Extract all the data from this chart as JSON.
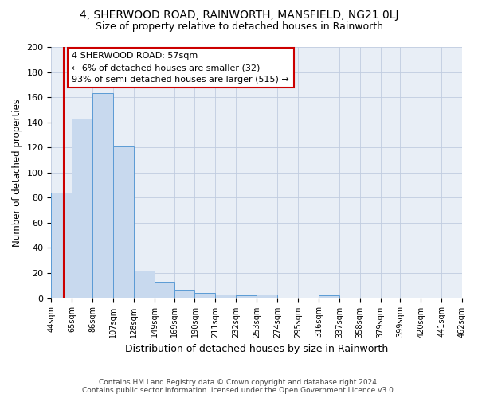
{
  "title": "4, SHERWOOD ROAD, RAINWORTH, MANSFIELD, NG21 0LJ",
  "subtitle": "Size of property relative to detached houses in Rainworth",
  "xlabel": "Distribution of detached houses by size in Rainworth",
  "ylabel": "Number of detached properties",
  "bin_labels": [
    "44sqm",
    "65sqm",
    "86sqm",
    "107sqm",
    "128sqm",
    "149sqm",
    "169sqm",
    "190sqm",
    "211sqm",
    "232sqm",
    "253sqm",
    "274sqm",
    "295sqm",
    "316sqm",
    "337sqm",
    "358sqm",
    "379sqm",
    "399sqm",
    "420sqm",
    "441sqm",
    "462sqm"
  ],
  "bin_edges": [
    44,
    65,
    86,
    107,
    128,
    149,
    169,
    190,
    211,
    232,
    253,
    274,
    295,
    316,
    337,
    358,
    379,
    399,
    420,
    441,
    462
  ],
  "bar_heights": [
    84,
    143,
    163,
    121,
    22,
    13,
    7,
    4,
    3,
    2,
    3,
    0,
    0,
    2,
    0,
    0,
    0,
    0,
    0,
    0
  ],
  "bar_color": "#c8d9ee",
  "bar_edge_color": "#5b9bd5",
  "property_size": 57,
  "property_line_color": "#cc0000",
  "annotation_text": "4 SHERWOOD ROAD: 57sqm\n← 6% of detached houses are smaller (32)\n93% of semi-detached houses are larger (515) →",
  "annotation_box_color": "#ffffff",
  "annotation_box_edge": "#cc0000",
  "ylim": [
    0,
    200
  ],
  "yticks": [
    0,
    20,
    40,
    60,
    80,
    100,
    120,
    140,
    160,
    180,
    200
  ],
  "bg_color": "#e8eef6",
  "footer_line1": "Contains HM Land Registry data © Crown copyright and database right 2024.",
  "footer_line2": "Contains public sector information licensed under the Open Government Licence v3.0."
}
